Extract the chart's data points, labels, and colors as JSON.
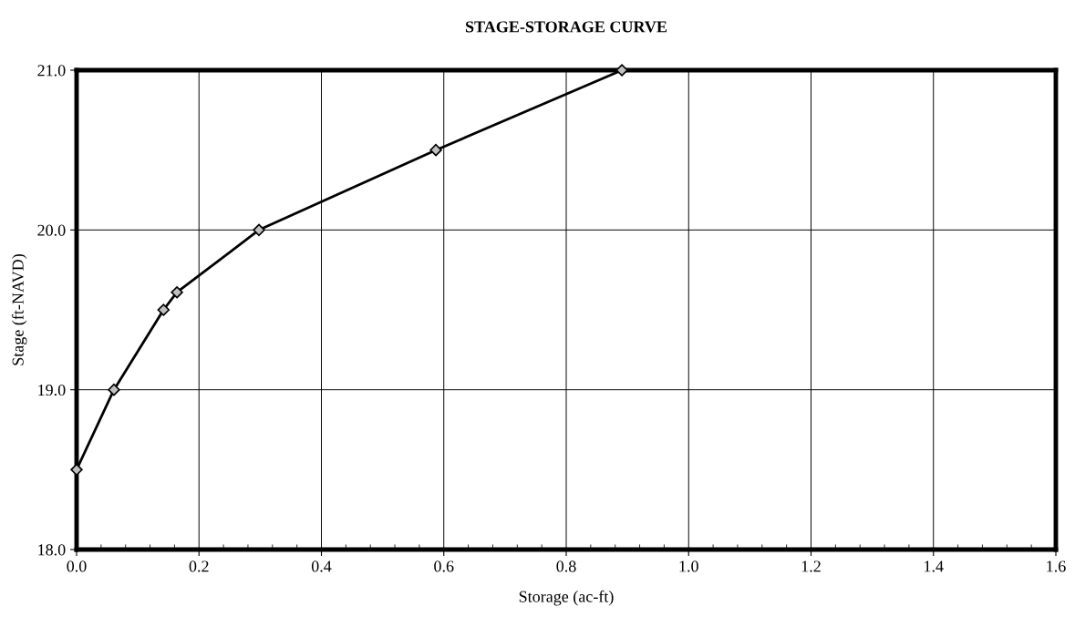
{
  "chart_data": {
    "type": "line",
    "title": "STAGE-STORAGE CURVE",
    "xlabel": "Storage (ac-ft)",
    "ylabel": "Stage (ft-NAVD)",
    "x": [
      0.0,
      0.061,
      0.142,
      0.164,
      0.298,
      0.587,
      0.891
    ],
    "series": [
      {
        "color": "#000000",
        "values": [
          18.5,
          19.0,
          19.5,
          19.61,
          20.0,
          20.5,
          21.0
        ]
      }
    ],
    "marker": "diamond",
    "line_style": "solid",
    "grid": true,
    "legend": false,
    "xlim": [
      0.0,
      1.6
    ],
    "xticks": [
      {
        "value": 0.0,
        "label": "0.0"
      },
      0.2,
      0.4,
      0.6,
      0.8,
      {
        "value": 1.0,
        "label": "1.0"
      },
      1.2,
      1.4,
      1.6
    ],
    "ylim": [
      18.0,
      21.0
    ],
    "yticks": [
      {
        "value": 18.0,
        "label": "18.0"
      },
      {
        "value": 19.0,
        "label": "19.0"
      },
      {
        "value": 20.0,
        "label": "20.0"
      },
      {
        "value": 21.0,
        "label": "21.0"
      }
    ]
  }
}
